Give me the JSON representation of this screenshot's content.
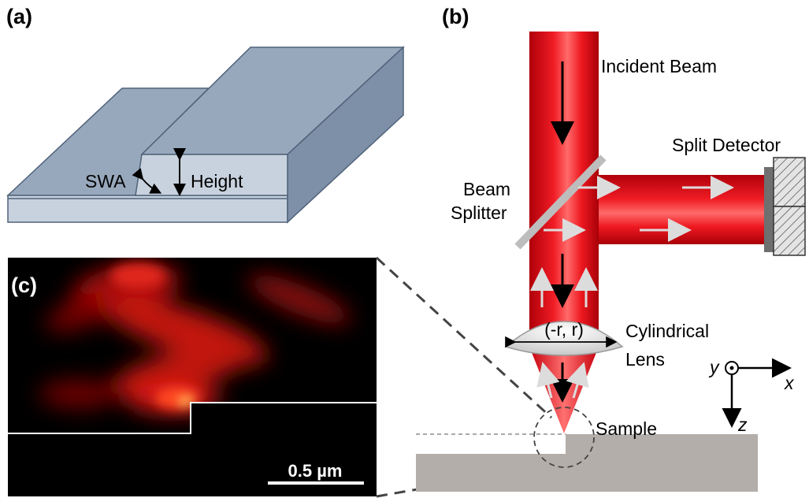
{
  "figure": {
    "panels": {
      "a": {
        "label": "(a)",
        "swa_label": "SWA",
        "height_label": "Height"
      },
      "b": {
        "label": "(b)",
        "incident_beam": "Incident Beam",
        "split_detector": "Split Detector",
        "beam_splitter_line1": "Beam",
        "beam_splitter_line2": "Splitter",
        "lens_line1": "Cylindrical",
        "lens_line2": "Lens",
        "lens_coords": "(-r, r)",
        "sample": "Sample",
        "axis_y": "y",
        "axis_x": "x",
        "axis_z": "z"
      },
      "c": {
        "label": "(c)",
        "scale_bar": "0.5 µm"
      }
    },
    "colors": {
      "beam_red": "#e8141c",
      "beam_dark": "#a80008",
      "block_top": "#98a8bc",
      "block_side": "#7e90a8",
      "block_front": "#c8d2de",
      "sample_gray": "#b3aeaa"
    }
  }
}
